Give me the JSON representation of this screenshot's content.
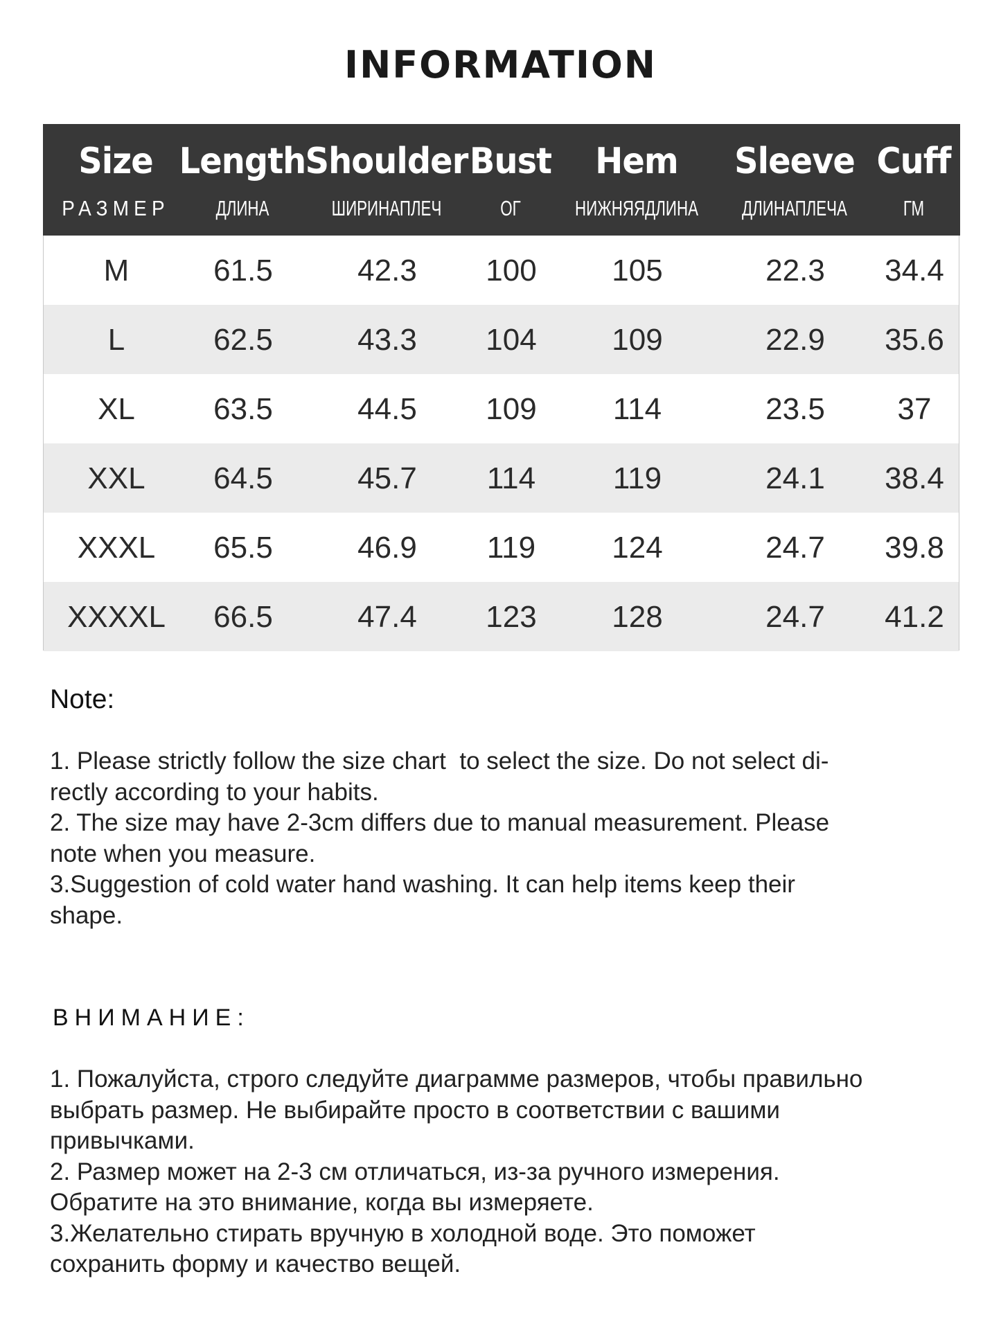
{
  "title": "INFORMATION",
  "table": {
    "columns": [
      {
        "en": "Size",
        "ru": "РАЗМЕР"
      },
      {
        "en": "Length",
        "ru": "ДЛИНА"
      },
      {
        "en": "Shoulder",
        "ru": "ШИРИНАПЛЕЧ"
      },
      {
        "en": "Bust",
        "ru": "ОГ"
      },
      {
        "en": "Hem",
        "ru": "НИЖНЯЯДЛИНА"
      },
      {
        "en": "Sleeve",
        "ru": "ДЛИНАПЛЕЧА"
      },
      {
        "en": "Cuff",
        "ru": "ГМ"
      }
    ],
    "rows": [
      [
        "M",
        "61.5",
        "42.3",
        "100",
        "105",
        "22.3",
        "34.4"
      ],
      [
        "L",
        "62.5",
        "43.3",
        "104",
        "109",
        "22.9",
        "35.6"
      ],
      [
        "XL",
        "63.5",
        "44.5",
        "109",
        "114",
        "23.5",
        "37"
      ],
      [
        "XXL",
        "64.5",
        "45.7",
        "114",
        "119",
        "24.1",
        "38.4"
      ],
      [
        "XXXL",
        "65.5",
        "46.9",
        "119",
        "124",
        "24.7",
        "39.8"
      ],
      [
        "XXXXL",
        "66.5",
        "47.4",
        "123",
        "128",
        "24.7",
        "41.2"
      ]
    ]
  },
  "note": {
    "heading": "Note:",
    "lines": [
      "1. Please strictly follow the size chart  to select the size. Do not select di-",
      "rectly according to your habits.",
      "2. The size may have 2-3cm differs due to manual measurement. Please",
      "note when you measure.",
      "3.Suggestion of cold water hand washing. It can help items keep their",
      "shape."
    ]
  },
  "attention": {
    "heading": "ВНИМАНИЕ:",
    "lines": [
      "1. Пожалуйста, строго следуйте диаграмме размеров, чтобы правильно",
      "выбрать размер. Не выбирайте просто в соответствии с вашими",
      "привычками.",
      "2. Размер может на 2-3 см отличаться, из-за ручного измерения.",
      "Обратите на это внимание, когда вы измеряете.",
      "3.Желательно стирать вручную в холодной воде. Это поможет",
      "сохранить форму и качество вещей."
    ]
  },
  "colors": {
    "header_bg": "#383838",
    "alt_row": "#ebebeb"
  }
}
